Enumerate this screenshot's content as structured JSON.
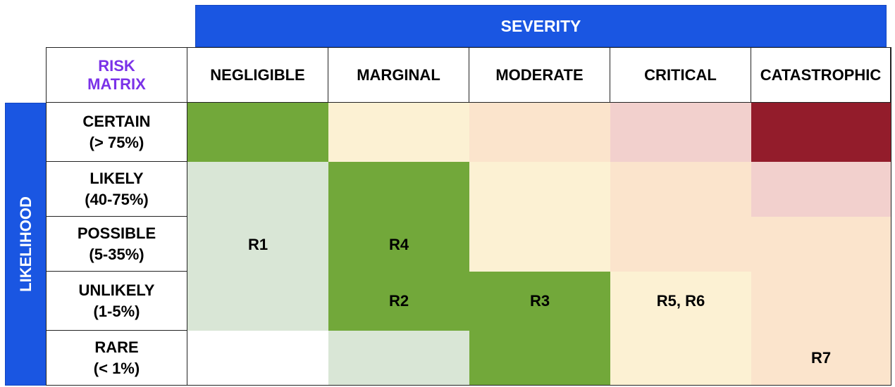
{
  "severity_title": "SEVERITY",
  "likelihood_title": "LIKELIHOOD",
  "corner": {
    "line1": "RISK",
    "line2": "MATRIX",
    "color": "#7b32e8"
  },
  "severity_levels": [
    "NEGLIGIBLE",
    "MARGINAL",
    "MODERATE",
    "CRITICAL",
    "CATASTROPHIC"
  ],
  "likelihood_levels": [
    {
      "name": "CERTAIN",
      "range": "(> 75%)"
    },
    {
      "name": "LIKELY",
      "range": "(40-75%)"
    },
    {
      "name": "POSSIBLE",
      "range": "(5-35%)"
    },
    {
      "name": "UNLIKELY",
      "range": "(1-5%)"
    },
    {
      "name": "RARE",
      "range": "(< 1%)"
    }
  ],
  "colors": {
    "header_blue": "#1a56e2",
    "dark_green": "#72a83a",
    "light_green": "#d9e6d6",
    "cream": "#fcf1d3",
    "peach": "#fbe4cc",
    "pink": "#f2d0cd",
    "dark_red": "#931c2b",
    "white": "#ffffff"
  },
  "risks": {
    "r1": "R1",
    "r4": "R4",
    "r2": "R2",
    "r3": "R3",
    "r56": "R5, R6",
    "r7": "R7"
  }
}
